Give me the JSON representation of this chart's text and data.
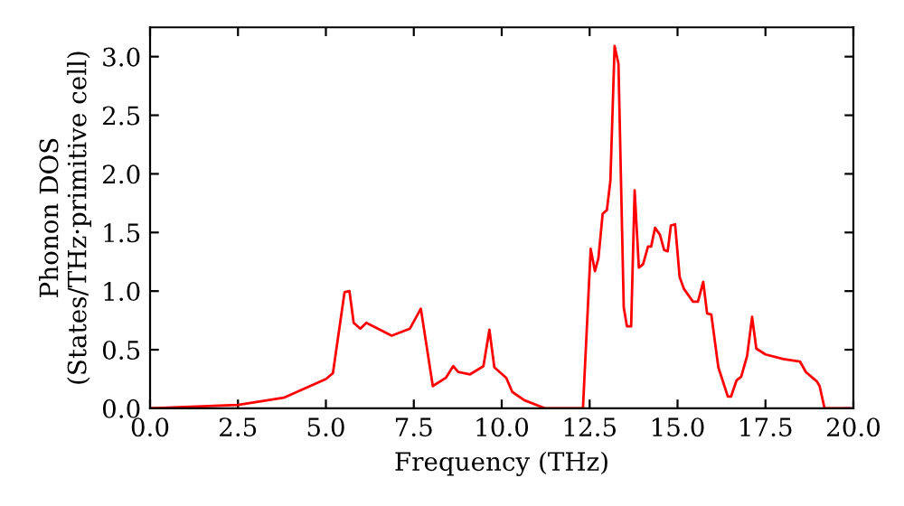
{
  "chart_data": {
    "type": "line",
    "xlabel": "Frequency (THz)",
    "ylabel": "Phonon DOS\n(States/THz·primitive cell)",
    "xlim": [
      0,
      20
    ],
    "ylim": [
      0,
      3.25
    ],
    "xticks": [
      {
        "value": 0,
        "label": "0.0"
      },
      {
        "value": 2.5,
        "label": "2.5"
      },
      {
        "value": 5,
        "label": "5.0"
      },
      {
        "value": 7.5,
        "label": "7.5"
      },
      {
        "value": 10,
        "label": "10.0"
      },
      {
        "value": 12.5,
        "label": "12.5"
      },
      {
        "value": 15,
        "label": "15.0"
      },
      {
        "value": 17.5,
        "label": "17.5"
      },
      {
        "value": 20,
        "label": "20.0"
      }
    ],
    "yticks": [
      {
        "value": 0,
        "label": "0.0"
      },
      {
        "value": 0.5,
        "label": "0.5"
      },
      {
        "value": 1,
        "label": "1.0"
      },
      {
        "value": 1.5,
        "label": "1.5"
      },
      {
        "value": 2,
        "label": "2.0"
      },
      {
        "value": 2.5,
        "label": "2.5"
      },
      {
        "value": 3,
        "label": "3.0"
      }
    ],
    "grid": false,
    "legend": false,
    "marker": "none",
    "line_style": "solid",
    "series": [
      {
        "color": "#ff0000",
        "x": [
          0,
          2.5,
          3.8,
          5.0,
          5.2,
          5.53,
          5.67,
          5.79,
          5.98,
          6.15,
          6.87,
          7.39,
          7.7,
          8.04,
          8.41,
          8.62,
          8.76,
          9.1,
          9.48,
          9.65,
          9.79,
          10.13,
          10.3,
          10.64,
          11.24,
          12.31,
          12.53,
          12.65,
          12.75,
          12.87,
          12.99,
          13.09,
          13.21,
          13.32,
          13.47,
          13.56,
          13.68,
          13.78,
          13.9,
          14.02,
          14.16,
          14.25,
          14.36,
          14.5,
          14.62,
          14.72,
          14.81,
          14.93,
          15.06,
          15.18,
          15.44,
          15.58,
          15.73,
          15.84,
          15.96,
          16.16,
          16.43,
          16.52,
          16.68,
          16.81,
          16.98,
          17.12,
          17.24,
          17.5,
          18.01,
          18.48,
          18.65,
          18.96,
          19.04,
          19.18,
          19.9
        ],
        "values": [
          0,
          0.03,
          0.09,
          0.25,
          0.3,
          0.99,
          1.0,
          0.73,
          0.68,
          0.73,
          0.62,
          0.68,
          0.85,
          0.19,
          0.26,
          0.36,
          0.31,
          0.29,
          0.36,
          0.67,
          0.35,
          0.26,
          0.14,
          0.07,
          0,
          0,
          1.36,
          1.17,
          1.28,
          1.66,
          1.69,
          1.94,
          3.09,
          2.94,
          0.86,
          0.7,
          0.7,
          1.86,
          1.2,
          1.23,
          1.38,
          1.38,
          1.54,
          1.48,
          1.35,
          1.34,
          1.56,
          1.57,
          1.12,
          1.02,
          0.91,
          0.91,
          1.08,
          0.81,
          0.8,
          0.35,
          0.1,
          0.1,
          0.24,
          0.27,
          0.45,
          0.78,
          0.51,
          0.46,
          0.42,
          0.4,
          0.31,
          0.23,
          0.19,
          0,
          0
        ]
      }
    ]
  }
}
